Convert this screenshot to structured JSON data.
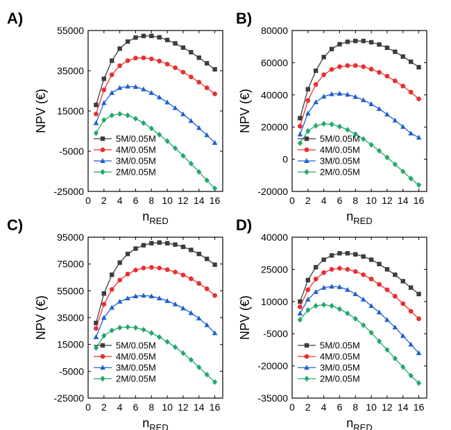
{
  "figure": {
    "panels": [
      "A)",
      "B)",
      "C)",
      "D)"
    ]
  },
  "chart_data": [
    {
      "panel": "A)",
      "type": "line",
      "xlabel": "n",
      "xlabel_sub": "RED",
      "ylabel": "NPV (€)",
      "xlim": [
        0,
        17
      ],
      "ylim": [
        -25000,
        55000
      ],
      "x_ticks": [
        0,
        2,
        4,
        6,
        8,
        10,
        12,
        14,
        16
      ],
      "y_ticks": [
        -25000,
        -5000,
        15000,
        35000,
        55000
      ],
      "legend": "bottom-left",
      "x": [
        1,
        2,
        3,
        4,
        5,
        6,
        7,
        8,
        9,
        10,
        11,
        12,
        13,
        14,
        15,
        16
      ],
      "series": [
        {
          "name": "5M/0.05M",
          "color": "#3c3c3c",
          "marker": "square",
          "values": [
            18000,
            31000,
            40000,
            46000,
            49500,
            51500,
            52300,
            52300,
            51600,
            50300,
            48600,
            46500,
            44200,
            41500,
            38700,
            35700
          ]
        },
        {
          "name": "4M/0.05M",
          "color": "#e8302f",
          "marker": "circle",
          "values": [
            13500,
            25500,
            33000,
            37500,
            40000,
            41300,
            41400,
            40900,
            39800,
            38300,
            36500,
            34300,
            31900,
            29300,
            26500,
            23500
          ]
        },
        {
          "name": "3M/0.05M",
          "color": "#1f5fd0",
          "marker": "triangle",
          "values": [
            9000,
            19000,
            24000,
            26500,
            27200,
            27000,
            25800,
            24000,
            21800,
            19300,
            16500,
            13400,
            10100,
            6600,
            3000,
            -800
          ]
        },
        {
          "name": "2M/0.05M",
          "color": "#22a86b",
          "marker": "diamond",
          "values": [
            4000,
            10500,
            12800,
            13500,
            12800,
            11200,
            9000,
            6300,
            3200,
            0,
            -3500,
            -7300,
            -11200,
            -15300,
            -19500,
            -23500
          ]
        }
      ]
    },
    {
      "panel": "B)",
      "type": "line",
      "xlabel": "n",
      "xlabel_sub": "RED",
      "ylabel": "NPV (€)",
      "xlim": [
        0,
        17
      ],
      "ylim": [
        -20000,
        80000
      ],
      "x_ticks": [
        0,
        2,
        4,
        6,
        8,
        10,
        12,
        14,
        16
      ],
      "y_ticks": [
        -20000,
        0,
        20000,
        40000,
        60000,
        80000
      ],
      "legend": "bottom-left",
      "x": [
        1,
        2,
        3,
        4,
        5,
        6,
        7,
        8,
        9,
        10,
        11,
        12,
        13,
        14,
        15,
        16
      ],
      "series": [
        {
          "name": "5M/0.05M",
          "color": "#3c3c3c",
          "marker": "square",
          "values": [
            25500,
            43500,
            55000,
            63500,
            68500,
            71500,
            73000,
            73500,
            73500,
            72700,
            71300,
            69300,
            66800,
            63800,
            60600,
            57200
          ]
        },
        {
          "name": "4M/0.05M",
          "color": "#e8302f",
          "marker": "circle",
          "values": [
            20500,
            36500,
            46500,
            52500,
            55800,
            57500,
            58200,
            58200,
            57500,
            56000,
            54000,
            51600,
            48700,
            45500,
            41700,
            37500
          ]
        },
        {
          "name": "3M/0.05M",
          "color": "#1f5fd0",
          "marker": "triangle",
          "values": [
            15500,
            28500,
            35500,
            39000,
            40500,
            40800,
            40200,
            38800,
            36800,
            34300,
            31300,
            27900,
            24200,
            20200,
            16100,
            13500
          ]
        },
        {
          "name": "2M/0.05M",
          "color": "#22a86b",
          "marker": "diamond",
          "values": [
            10000,
            17500,
            20800,
            22000,
            21700,
            20300,
            18300,
            15600,
            12500,
            9000,
            5200,
            1100,
            -3200,
            -7600,
            -12000,
            -16000
          ]
        }
      ]
    },
    {
      "panel": "C)",
      "type": "line",
      "xlabel": "n",
      "xlabel_sub": "RED",
      "ylabel": "NPV (€)",
      "xlim": [
        0,
        17
      ],
      "ylim": [
        -25000,
        95000
      ],
      "x_ticks": [
        0,
        2,
        4,
        6,
        8,
        10,
        12,
        14,
        16
      ],
      "y_ticks": [
        -25000,
        -5000,
        15000,
        35000,
        55000,
        75000,
        95000
      ],
      "legend": "bottom-left",
      "x": [
        1,
        2,
        3,
        4,
        5,
        6,
        7,
        8,
        9,
        10,
        11,
        12,
        13,
        14,
        15,
        16
      ],
      "series": [
        {
          "name": "5M/0.05M",
          "color": "#3c3c3c",
          "marker": "square",
          "values": [
            31000,
            53000,
            67000,
            76000,
            82500,
            86500,
            89000,
            90500,
            91000,
            90500,
            89500,
            87800,
            85500,
            82500,
            78800,
            74500
          ]
        },
        {
          "name": "4M/0.05M",
          "color": "#e8302f",
          "marker": "circle",
          "values": [
            27000,
            45000,
            56000,
            63000,
            67500,
            70500,
            72000,
            72500,
            72000,
            70800,
            69000,
            66800,
            64000,
            60500,
            56500,
            51500
          ]
        },
        {
          "name": "3M/0.05M",
          "color": "#1f5fd0",
          "marker": "triangle",
          "values": [
            20500,
            35000,
            42500,
            47000,
            49500,
            51000,
            51500,
            51000,
            49500,
            47500,
            45000,
            42000,
            38500,
            34500,
            29500,
            23500
          ]
        },
        {
          "name": "2M/0.05M",
          "color": "#22a86b",
          "marker": "diamond",
          "values": [
            12500,
            21500,
            25500,
            27500,
            28000,
            27500,
            26000,
            23500,
            20500,
            17000,
            13000,
            8500,
            3500,
            -2000,
            -7500,
            -13000
          ]
        }
      ]
    },
    {
      "panel": "D)",
      "type": "line",
      "xlabel": "n",
      "xlabel_sub": "RED",
      "ylabel": "NPV (€)",
      "xlim": [
        0,
        17
      ],
      "ylim": [
        -35000,
        40000
      ],
      "x_ticks": [
        0,
        2,
        4,
        6,
        8,
        10,
        12,
        14,
        16
      ],
      "y_ticks": [
        -35000,
        -20000,
        -5000,
        10000,
        25000,
        40000
      ],
      "legend": "bottom-left",
      "x": [
        1,
        2,
        3,
        4,
        5,
        6,
        7,
        8,
        9,
        10,
        11,
        12,
        13,
        14,
        15,
        16
      ],
      "series": [
        {
          "name": "5M/0.05M",
          "color": "#3c3c3c",
          "marker": "square",
          "values": [
            10000,
            20000,
            26000,
            29500,
            31500,
            32500,
            32500,
            32000,
            31000,
            29500,
            27500,
            25000,
            22500,
            19500,
            16500,
            13500
          ]
        },
        {
          "name": "4M/0.05M",
          "color": "#e8302f",
          "marker": "circle",
          "values": [
            7500,
            15500,
            20500,
            23500,
            25000,
            25500,
            25000,
            24000,
            22500,
            20500,
            18000,
            15500,
            12500,
            9000,
            5500,
            2000
          ]
        },
        {
          "name": "3M/0.05M",
          "color": "#1f5fd0",
          "marker": "triangle",
          "values": [
            4500,
            11000,
            14500,
            16500,
            17000,
            16800,
            15500,
            13500,
            11000,
            8000,
            5000,
            1500,
            -2000,
            -6000,
            -10000,
            -14000
          ]
        },
        {
          "name": "2M/0.05M",
          "color": "#22a86b",
          "marker": "diamond",
          "values": [
            1500,
            6000,
            8000,
            8500,
            8000,
            6500,
            4500,
            2000,
            -1000,
            -4500,
            -8500,
            -12500,
            -16500,
            -20500,
            -24500,
            -28000
          ]
        }
      ]
    }
  ]
}
